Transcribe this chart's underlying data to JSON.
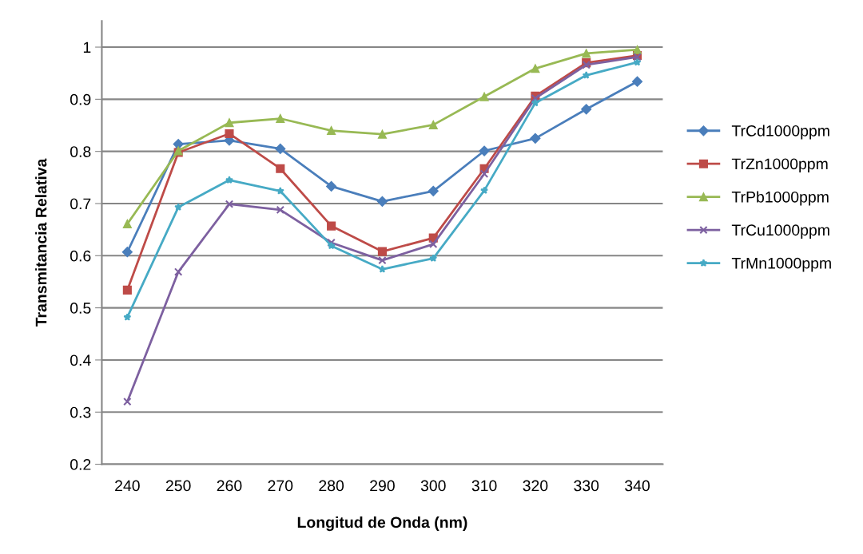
{
  "chart_data": {
    "type": "line",
    "xlabel": "Longitud de Onda (nm)",
    "ylabel": "Transmitancia Relativa",
    "categories": [
      "240",
      "250",
      "260",
      "270",
      "280",
      "290",
      "300",
      "310",
      "320",
      "330",
      "340"
    ],
    "ylim": [
      0.2,
      1.05
    ],
    "yticks": [
      0.2,
      0.3,
      0.4,
      0.5,
      0.6,
      0.7,
      0.8,
      0.9,
      1
    ],
    "grid": "y",
    "legend": "right",
    "series": [
      {
        "name": "TrCd1000ppm",
        "color": "#4a7ebb",
        "marker": "diamond",
        "values": [
          0.607,
          0.814,
          0.821,
          0.805,
          0.733,
          0.704,
          0.724,
          0.801,
          0.825,
          0.881,
          0.934
        ]
      },
      {
        "name": "TrZn1000ppm",
        "color": "#be4b48",
        "marker": "square",
        "values": [
          0.534,
          0.798,
          0.834,
          0.767,
          0.657,
          0.608,
          0.634,
          0.767,
          0.906,
          0.97,
          0.984
        ]
      },
      {
        "name": "TrPb1000ppm",
        "color": "#98b954",
        "marker": "triangle",
        "values": [
          0.661,
          0.801,
          0.855,
          0.863,
          0.84,
          0.833,
          0.851,
          0.905,
          0.959,
          0.988,
          0.995
        ]
      },
      {
        "name": "TrCu1000ppm",
        "color": "#7d60a0",
        "marker": "cross",
        "values": [
          0.32,
          0.569,
          0.699,
          0.688,
          0.625,
          0.591,
          0.622,
          0.757,
          0.902,
          0.966,
          0.981
        ]
      },
      {
        "name": "TrMn1000ppm",
        "color": "#46aac5",
        "marker": "star",
        "values": [
          0.482,
          0.693,
          0.745,
          0.724,
          0.619,
          0.574,
          0.595,
          0.725,
          0.893,
          0.946,
          0.971
        ]
      }
    ]
  }
}
